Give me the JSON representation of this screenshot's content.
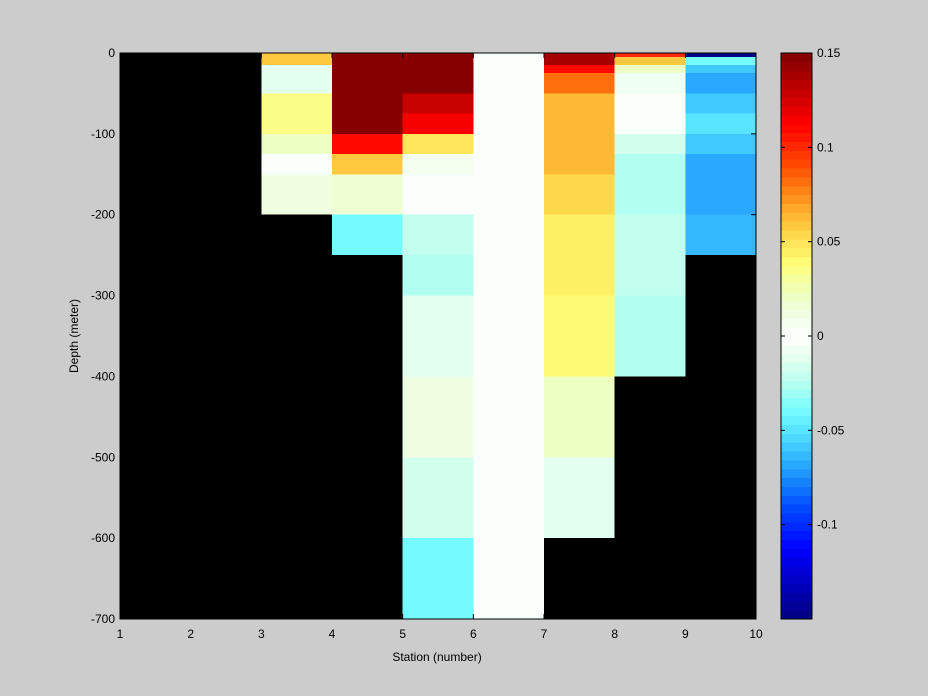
{
  "chart_data": {
    "type": "heatmap",
    "title": "",
    "xlabel": "Station (number)",
    "ylabel": "Depth (meter)",
    "xlim": [
      1,
      10
    ],
    "ylim": [
      -700,
      0
    ],
    "xticks": [
      "1",
      "2",
      "3",
      "4",
      "5",
      "6",
      "7",
      "8",
      "9",
      "10"
    ],
    "yticks": [
      "0",
      "-100",
      "-200",
      "-300",
      "-400",
      "-500",
      "-600",
      "-700"
    ],
    "colorbar": {
      "range": [
        -0.15,
        0.15
      ],
      "ticks": [
        "0.15",
        "0.1",
        "0.05",
        "0",
        "-0.05",
        "-0.1"
      ],
      "colormap": "jet",
      "levels": 64
    },
    "background_color": "#000000",
    "cells": [
      {
        "station": 3,
        "depth_top": 0,
        "depth_bottom": -15,
        "value": 0.06
      },
      {
        "station": 3,
        "depth_top": -15,
        "depth_bottom": -50,
        "value": -0.01
      },
      {
        "station": 3,
        "depth_top": -50,
        "depth_bottom": -100,
        "value": 0.035
      },
      {
        "station": 3,
        "depth_top": -100,
        "depth_bottom": -125,
        "value": 0.02
      },
      {
        "station": 3,
        "depth_top": -125,
        "depth_bottom": -150,
        "value": 0.003
      },
      {
        "station": 3,
        "depth_top": -150,
        "depth_bottom": -200,
        "value": 0.01
      },
      {
        "station": 4,
        "depth_top": 0,
        "depth_bottom": -100,
        "value": 0.15
      },
      {
        "station": 4,
        "depth_top": -100,
        "depth_bottom": -125,
        "value": 0.11
      },
      {
        "station": 4,
        "depth_top": -125,
        "depth_bottom": -150,
        "value": 0.06
      },
      {
        "station": 4,
        "depth_top": -150,
        "depth_bottom": -200,
        "value": 0.017
      },
      {
        "station": 4,
        "depth_top": -200,
        "depth_bottom": -250,
        "value": -0.04
      },
      {
        "station": 5,
        "depth_top": 0,
        "depth_bottom": -50,
        "value": 0.15
      },
      {
        "station": 5,
        "depth_top": -50,
        "depth_bottom": -75,
        "value": 0.13
      },
      {
        "station": 5,
        "depth_top": -75,
        "depth_bottom": -100,
        "value": 0.115
      },
      {
        "station": 5,
        "depth_top": -100,
        "depth_bottom": -125,
        "value": 0.05
      },
      {
        "station": 5,
        "depth_top": -125,
        "depth_bottom": -150,
        "value": 0.008
      },
      {
        "station": 5,
        "depth_top": -150,
        "depth_bottom": -200,
        "value": -0.004
      },
      {
        "station": 5,
        "depth_top": -200,
        "depth_bottom": -250,
        "value": -0.02
      },
      {
        "station": 5,
        "depth_top": -250,
        "depth_bottom": -300,
        "value": -0.027
      },
      {
        "station": 5,
        "depth_top": -300,
        "depth_bottom": -400,
        "value": -0.01
      },
      {
        "station": 5,
        "depth_top": -400,
        "depth_bottom": -500,
        "value": 0.01
      },
      {
        "station": 5,
        "depth_top": -500,
        "depth_bottom": -600,
        "value": -0.017
      },
      {
        "station": 5,
        "depth_top": -600,
        "depth_bottom": -700,
        "value": -0.038
      },
      {
        "station": 6,
        "depth_top": 0,
        "depth_bottom": -700,
        "value": -0.004
      },
      {
        "station": 7,
        "depth_top": 0,
        "depth_bottom": -15,
        "value": 0.14
      },
      {
        "station": 7,
        "depth_top": -15,
        "depth_bottom": -25,
        "value": 0.11
      },
      {
        "station": 7,
        "depth_top": -25,
        "depth_bottom": -50,
        "value": 0.08
      },
      {
        "station": 7,
        "depth_top": -50,
        "depth_bottom": -150,
        "value": 0.062
      },
      {
        "station": 7,
        "depth_top": -150,
        "depth_bottom": -200,
        "value": 0.055
      },
      {
        "station": 7,
        "depth_top": -200,
        "depth_bottom": -300,
        "value": 0.045
      },
      {
        "station": 7,
        "depth_top": -300,
        "depth_bottom": -400,
        "value": 0.04
      },
      {
        "station": 7,
        "depth_top": -400,
        "depth_bottom": -500,
        "value": 0.02
      },
      {
        "station": 7,
        "depth_top": -500,
        "depth_bottom": -600,
        "value": -0.01
      },
      {
        "station": 8,
        "depth_top": 0,
        "depth_bottom": -5,
        "value": 0.1
      },
      {
        "station": 8,
        "depth_top": -5,
        "depth_bottom": -15,
        "value": 0.06
      },
      {
        "station": 8,
        "depth_top": -15,
        "depth_bottom": -25,
        "value": 0.02
      },
      {
        "station": 8,
        "depth_top": -25,
        "depth_bottom": -50,
        "value": -0.008
      },
      {
        "station": 8,
        "depth_top": -50,
        "depth_bottom": -100,
        "value": 0.002
      },
      {
        "station": 8,
        "depth_top": -100,
        "depth_bottom": -125,
        "value": -0.015
      },
      {
        "station": 8,
        "depth_top": -125,
        "depth_bottom": -200,
        "value": -0.025
      },
      {
        "station": 8,
        "depth_top": -200,
        "depth_bottom": -300,
        "value": -0.021
      },
      {
        "station": 8,
        "depth_top": -300,
        "depth_bottom": -400,
        "value": -0.027
      },
      {
        "station": 9,
        "depth_top": 0,
        "depth_bottom": -5,
        "value": -0.15
      },
      {
        "station": 9,
        "depth_top": -5,
        "depth_bottom": -15,
        "value": -0.04
      },
      {
        "station": 9,
        "depth_top": -15,
        "depth_bottom": -25,
        "value": -0.06
      },
      {
        "station": 9,
        "depth_top": -25,
        "depth_bottom": -50,
        "value": -0.07
      },
      {
        "station": 9,
        "depth_top": -50,
        "depth_bottom": -75,
        "value": -0.06
      },
      {
        "station": 9,
        "depth_top": -75,
        "depth_bottom": -100,
        "value": -0.05
      },
      {
        "station": 9,
        "depth_top": -100,
        "depth_bottom": -125,
        "value": -0.06
      },
      {
        "station": 9,
        "depth_top": -125,
        "depth_bottom": -200,
        "value": -0.07
      },
      {
        "station": 9,
        "depth_top": -200,
        "depth_bottom": -250,
        "value": -0.062
      }
    ]
  }
}
